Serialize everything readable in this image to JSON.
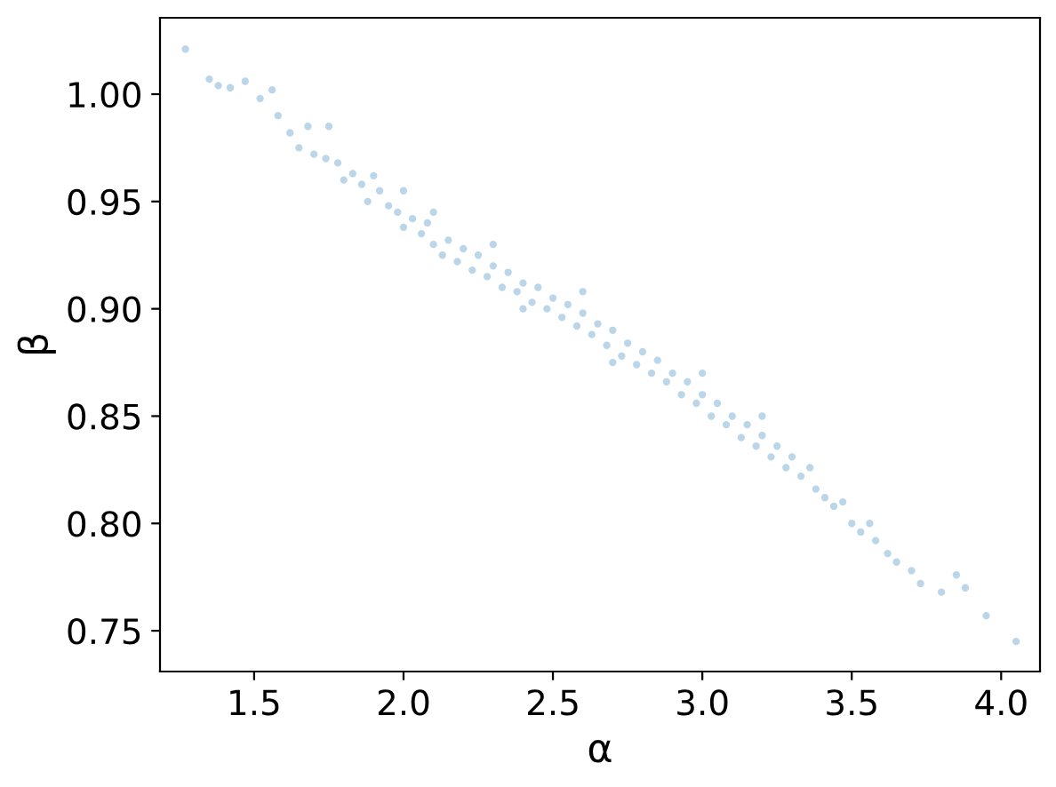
{
  "chart_data": {
    "type": "scatter",
    "xlabel": "α",
    "ylabel": "β",
    "xlim": [
      1.185,
      4.13
    ],
    "ylim": [
      0.731,
      1.0356
    ],
    "xticks": [
      {
        "value": 1.5,
        "label": "1.5"
      },
      {
        "value": 2.0,
        "label": "2.0"
      },
      {
        "value": 2.5,
        "label": "2.5"
      },
      {
        "value": 3.0,
        "label": "3.0"
      },
      {
        "value": 3.5,
        "label": "3.5"
      },
      {
        "value": 4.0,
        "label": "4.0"
      }
    ],
    "yticks": [
      0.75,
      {
        "value": 0.8,
        "label": "0.80"
      },
      0.85,
      {
        "value": 0.9,
        "label": "0.90"
      },
      0.95,
      {
        "value": 1.0,
        "label": "1.00"
      }
    ],
    "grid": false,
    "marker": "circle",
    "series": [
      {
        "color": "#1f77b4",
        "x": [
          1.27,
          1.35,
          1.38,
          1.42,
          1.47,
          1.52,
          1.56,
          1.58,
          1.62,
          1.65,
          1.68,
          1.7,
          1.74,
          1.75,
          1.78,
          1.8,
          1.83,
          1.86,
          1.88,
          1.9,
          1.92,
          1.95,
          1.98,
          2.0,
          2.0,
          2.03,
          2.06,
          2.08,
          2.1,
          2.1,
          2.13,
          2.15,
          2.18,
          2.2,
          2.23,
          2.25,
          2.28,
          2.3,
          2.3,
          2.33,
          2.35,
          2.38,
          2.4,
          2.4,
          2.43,
          2.45,
          2.48,
          2.5,
          2.53,
          2.55,
          2.58,
          2.6,
          2.6,
          2.63,
          2.65,
          2.68,
          2.7,
          2.7,
          2.73,
          2.75,
          2.78,
          2.8,
          2.83,
          2.85,
          2.88,
          2.9,
          2.93,
          2.95,
          2.98,
          3.0,
          3.0,
          3.03,
          3.05,
          3.08,
          3.1,
          3.13,
          3.15,
          3.18,
          3.2,
          3.2,
          3.23,
          3.25,
          3.28,
          3.3,
          3.33,
          3.36,
          3.38,
          3.41,
          3.44,
          3.47,
          3.5,
          3.53,
          3.56,
          3.58,
          3.62,
          3.65,
          3.7,
          3.73,
          3.8,
          3.85,
          3.88,
          3.95,
          4.05
        ],
        "values": [
          1.021,
          1.007,
          1.004,
          1.003,
          1.006,
          0.998,
          1.002,
          0.99,
          0.982,
          0.975,
          0.985,
          0.972,
          0.97,
          0.985,
          0.968,
          0.96,
          0.963,
          0.958,
          0.95,
          0.962,
          0.955,
          0.948,
          0.945,
          0.938,
          0.955,
          0.942,
          0.935,
          0.94,
          0.93,
          0.945,
          0.925,
          0.932,
          0.922,
          0.928,
          0.918,
          0.925,
          0.915,
          0.92,
          0.93,
          0.91,
          0.917,
          0.908,
          0.912,
          0.9,
          0.903,
          0.91,
          0.9,
          0.905,
          0.896,
          0.902,
          0.892,
          0.898,
          0.908,
          0.888,
          0.893,
          0.883,
          0.89,
          0.875,
          0.878,
          0.884,
          0.874,
          0.88,
          0.87,
          0.876,
          0.866,
          0.87,
          0.86,
          0.866,
          0.856,
          0.86,
          0.87,
          0.85,
          0.856,
          0.846,
          0.85,
          0.84,
          0.846,
          0.836,
          0.841,
          0.85,
          0.831,
          0.836,
          0.826,
          0.831,
          0.822,
          0.826,
          0.816,
          0.812,
          0.808,
          0.81,
          0.8,
          0.796,
          0.8,
          0.792,
          0.786,
          0.782,
          0.778,
          0.772,
          0.768,
          0.776,
          0.77,
          0.757,
          0.745
        ]
      }
    ]
  }
}
